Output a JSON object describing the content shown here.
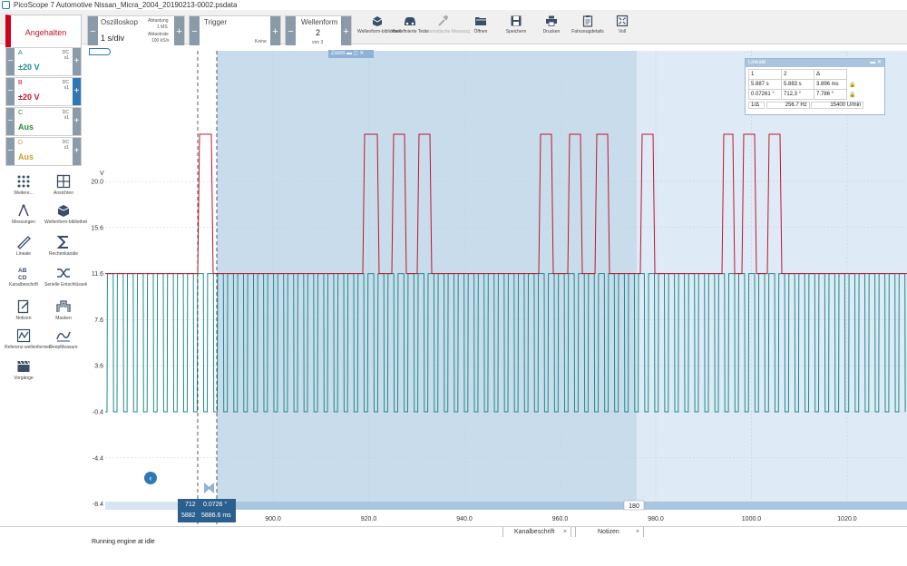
{
  "window": {
    "title": "PicoScope 7 Automotive Nissan_Micra_2004_20190213-0002.psdata"
  },
  "toolbar": {
    "stop_label": "Angehalten",
    "oscilloscope": {
      "label": "Oszilloskop",
      "value": "1 s/div",
      "resolution_label": "Abtastung",
      "resolution_value": "1 MS",
      "rate_label": "Abtastrate",
      "rate_value": "100 kS/s"
    },
    "trigger": {
      "label": "Trigger",
      "mode": "Keine"
    },
    "waveform": {
      "label": "Wellenform",
      "value": "2",
      "of": "von 3"
    },
    "buttons": [
      {
        "label": "Wellenform-bibliothek",
        "icon": "library-icon",
        "enabled": true
      },
      {
        "label": "Vordefinierte Tests",
        "icon": "car-icon",
        "enabled": true
      },
      {
        "label": "Automatische Messung",
        "icon": "wrench-icon",
        "enabled": false
      },
      {
        "label": "Öffnen",
        "icon": "folder-icon",
        "enabled": true
      },
      {
        "label": "Speichern",
        "icon": "save-icon",
        "enabled": true
      },
      {
        "label": "Drucken",
        "icon": "print-icon",
        "enabled": true
      },
      {
        "label": "Fahrzeugdetails",
        "icon": "clipboard-icon",
        "enabled": true
      },
      {
        "label": "Voll",
        "icon": "fullscreen-icon",
        "enabled": true
      }
    ]
  },
  "channels": [
    {
      "name": "A",
      "coupling": "DC",
      "probe": "x1",
      "range": "±20 V",
      "color": "#1f8a8a",
      "active": false
    },
    {
      "name": "B",
      "coupling": "DC",
      "probe": "x1",
      "range": "±20 V",
      "color": "#c0152b",
      "active": true
    },
    {
      "name": "C",
      "coupling": "DC",
      "probe": "x1",
      "range": "Aus",
      "color": "#2e8b2e",
      "active": false
    },
    {
      "name": "D",
      "coupling": "DC",
      "probe": "x1",
      "range": "Aus",
      "color": "#c9a227",
      "active": false
    }
  ],
  "side_tools": [
    {
      "label": "Weitere...",
      "icon": "grid-dots-icon"
    },
    {
      "label": "Ansichten",
      "icon": "views-icon"
    },
    {
      "label": "Messungen",
      "icon": "compass-icon"
    },
    {
      "label": "Wellenform-bibliothek",
      "icon": "library-icon"
    },
    {
      "label": "Lineale",
      "icon": "ruler-icon"
    },
    {
      "label": "Rechenkanäle",
      "icon": "sigma-icon"
    },
    {
      "label": "Kanalbeschrift",
      "icon": "abcd-icon"
    },
    {
      "label": "Serielle Entschlüsselung",
      "icon": "serial-icon"
    },
    {
      "label": "Notizen",
      "icon": "notes-icon"
    },
    {
      "label": "Masken",
      "icon": "mask-icon"
    },
    {
      "label": "Referenz-wellenformen",
      "icon": "reference-icon"
    },
    {
      "label": "DeepMeasure",
      "icon": "deepmeasure-icon"
    },
    {
      "label": "Vorgänge",
      "icon": "clapper-icon"
    }
  ],
  "scope": {
    "y_unit": "V",
    "y_ticks": [
      "20.0",
      "15.6",
      "11.6",
      "7.6",
      "3.6",
      "-0.4",
      "-4.4",
      "-8.4"
    ],
    "x_ticks": [
      "900.0",
      "920.0",
      "940.0",
      "960.0",
      "980.0",
      "1000.0",
      "1020.0"
    ],
    "x_scroll_marker": "180",
    "zoom_label": "Zoom"
  },
  "rulers": {
    "title": "Lineale",
    "headers": [
      "1",
      "2",
      "Δ"
    ],
    "rows": [
      [
        "5.887 s",
        "5.883 s",
        "3.896 ms"
      ],
      [
        "0.07261 °",
        "712,3 °",
        "7.786 °"
      ]
    ],
    "freq_label": "1/Δ",
    "freq_value": "256.7 Hz",
    "rpm_value": "15400 U/min"
  },
  "cursor_readout": {
    "line1a": "712",
    "line1b": "0.0726 °",
    "line2a": "5882",
    "line2b": "5886.6 ms"
  },
  "x_axis_partial": "8",
  "tabs": [
    {
      "label": "Kanalbeschrift"
    },
    {
      "label": "Notizen"
    }
  ],
  "notes": {
    "text": "Running engine at idle"
  }
}
